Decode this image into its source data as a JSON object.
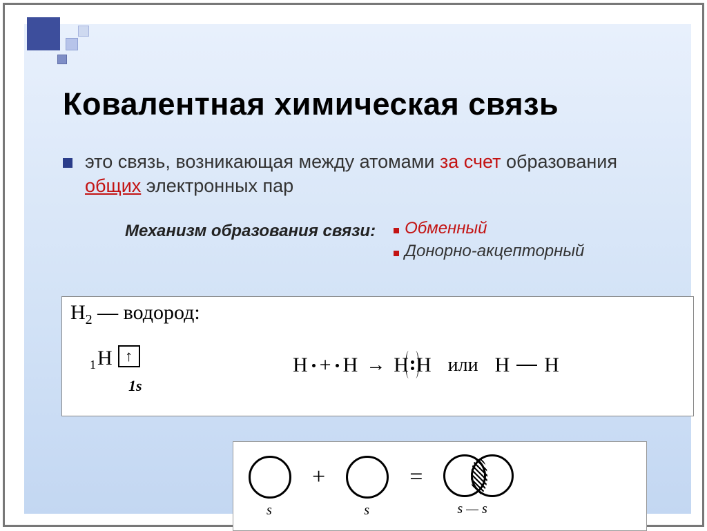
{
  "title": "Ковалентная химическая связь",
  "definition": {
    "part1": "это связь, возникающая между атомами ",
    "part2_red": "за счет ",
    "part3": "образования ",
    "part4_red_ul": "общих",
    "part5": " электронных пар"
  },
  "mechanism_label": "Механизм образования связи:",
  "mechanisms": {
    "m1": "Обменный",
    "m2": "Донорно-акцепторный"
  },
  "hydrogen": {
    "header_html_parts": {
      "h": "H",
      "sub": "2",
      "dash": " — ",
      "word": "водород:"
    },
    "presub": "1",
    "element": "H",
    "orbital_arrow": "↑",
    "orbital_label": "1s",
    "formula": {
      "H": "H",
      "plus": "+",
      "arrow": "→",
      "or": "или"
    }
  },
  "orbitals": {
    "label_s": "s",
    "label_ss": "s — s",
    "plus": "+",
    "eq": "="
  },
  "colors": {
    "accent_blue": "#3d4e9c",
    "accent_red": "#c31313",
    "bg_top": "#e8f0fc",
    "bg_bottom": "#c3d7f2"
  }
}
